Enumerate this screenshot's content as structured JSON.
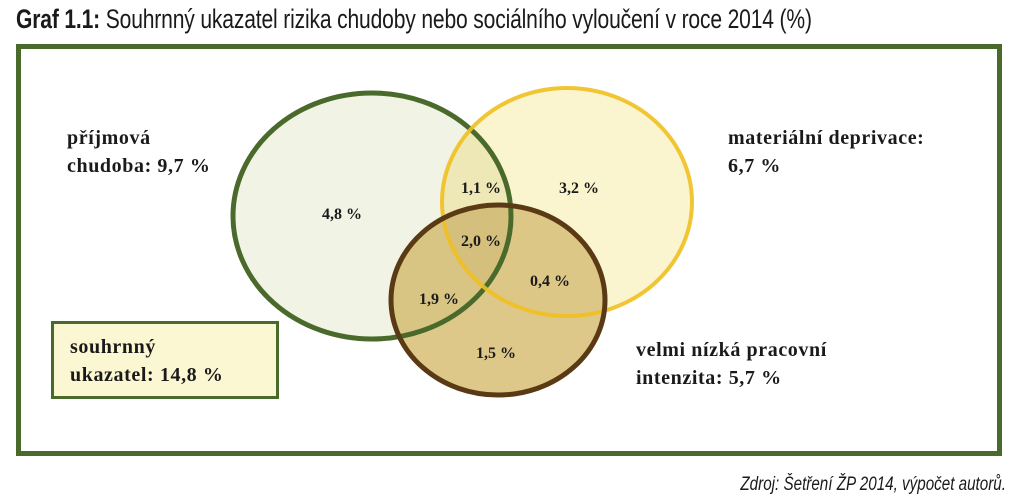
{
  "header": {
    "title_lead": "Graf 1.1:",
    "title_rest": " Souhrnný ukazatel rizika chudoby nebo sociálního vyloučení v roce 2014 (%)"
  },
  "colors": {
    "frame": "#4a6a2c",
    "income_circle": "#4a6a2c",
    "deprivation_circle": "#f0c020",
    "work_circle": "#5a3a14",
    "summary_fill": "#fbf7d2"
  },
  "sets": {
    "income": {
      "label_line1": "příjmová",
      "label_line2": "chudoba: 9,7 %"
    },
    "deprivation": {
      "label_line1": "materiální deprivace:",
      "label_line2": "6,7 %"
    },
    "work": {
      "label_line1": "velmi nízká pracovní",
      "label_line2": "intenzita: 5,7 %"
    }
  },
  "regions": {
    "income_only": "4,8 %",
    "income_deprivation": "1,1 %",
    "deprivation_only": "3,2 %",
    "all_three": "2,0 %",
    "income_work": "1,9 %",
    "deprivation_work": "0,4 %",
    "work_only": "1,5 %"
  },
  "summary": {
    "line1": "souhrnný",
    "line2": "ukazatel: 14,8 %"
  },
  "source": "Zdroj: Šetření ŽP 2014, výpočet autorů."
}
